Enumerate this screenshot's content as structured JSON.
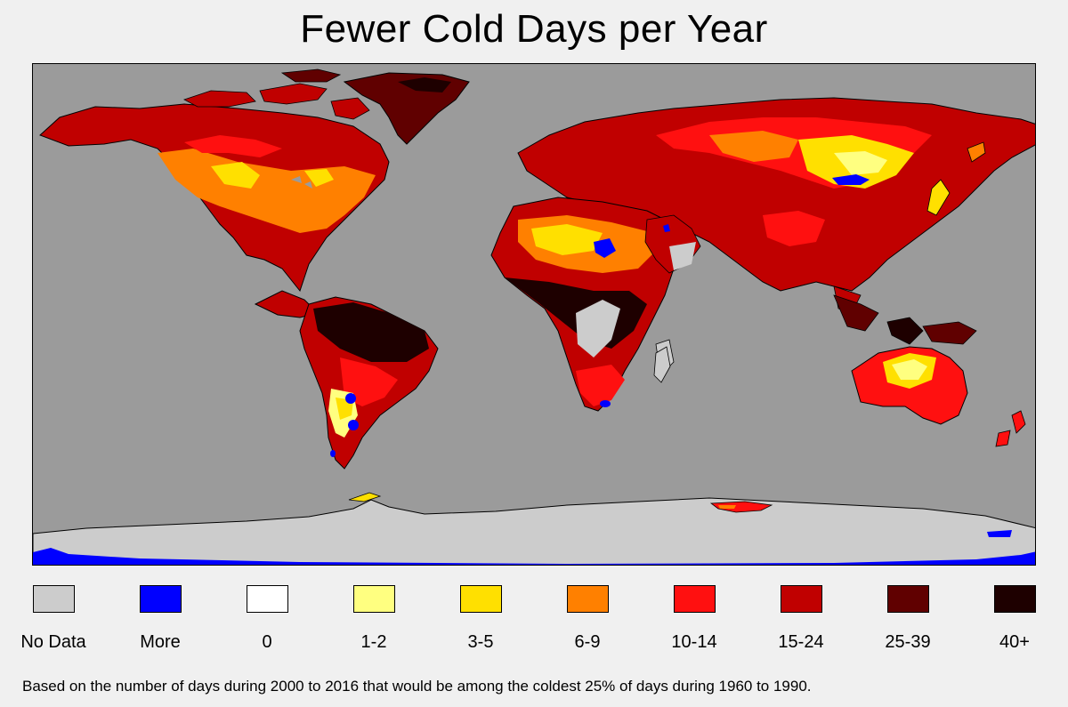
{
  "title": "Fewer Cold Days per Year",
  "colors": {
    "ocean": "#9b9b9b",
    "no_data": "#cccccc",
    "more": "#0000ff",
    "zero": "#ffffff",
    "c_1_2": "#ffff80",
    "c_3_5": "#ffe000",
    "c_6_9": "#ff8000",
    "c_10_14": "#ff1010",
    "c_15_24": "#c00000",
    "c_25_39": "#600000",
    "c_40_plus": "#1e0000"
  },
  "legend": [
    {
      "label": "No Data",
      "color": "#cccccc"
    },
    {
      "label": "More",
      "color": "#0000ff"
    },
    {
      "label": "0",
      "color": "#ffffff"
    },
    {
      "label": "1-2",
      "color": "#ffff80"
    },
    {
      "label": "3-5",
      "color": "#ffe000"
    },
    {
      "label": "6-9",
      "color": "#ff8000"
    },
    {
      "label": "10-14",
      "color": "#ff1010"
    },
    {
      "label": "15-24",
      "color": "#c00000"
    },
    {
      "label": "25-39",
      "color": "#600000"
    },
    {
      "label": "40+",
      "color": "#1e0000"
    }
  ],
  "footnote": "Based on the number of days during 2000 to 2016 that would be among the coldest 25% of days during 1960 to 1990."
}
